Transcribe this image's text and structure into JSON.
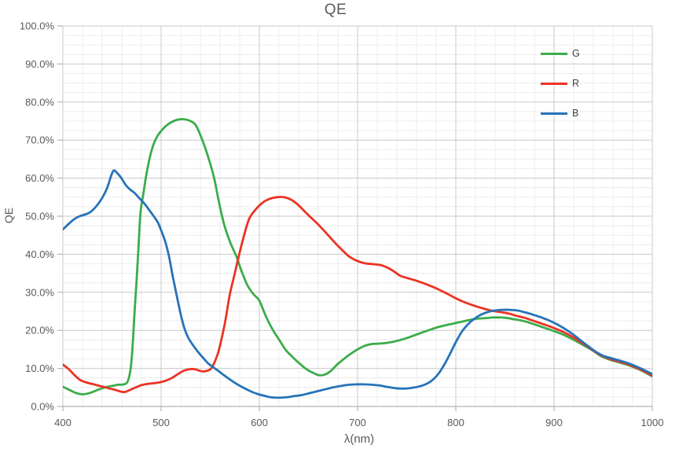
{
  "title": "QE",
  "chart_data": {
    "type": "line",
    "title": "QE",
    "xlabel": "λ(nm)",
    "ylabel": "QE",
    "x_range": [
      400,
      1000
    ],
    "y_range_percent": [
      0,
      100
    ],
    "x_major_step": 100,
    "x_minor_step": 20,
    "y_major_step_percent": 10,
    "y_minor_step_percent": 2.5,
    "grid": true,
    "legend_position": "inside-top-right",
    "x_tick_labels": [
      "400",
      "500",
      "600",
      "700",
      "800",
      "900",
      "1000"
    ],
    "y_tick_labels": [
      "0.0%",
      "10.0%",
      "20.0%",
      "30.0%",
      "40.0%",
      "50.0%",
      "60.0%",
      "70.0%",
      "80.0%",
      "90.0%",
      "100.0%"
    ],
    "grid_colors": {
      "minor": "#ececec",
      "major": "#c9c9c9",
      "axis": "#b5b5b5"
    },
    "text_color": "#595959",
    "series": [
      {
        "name": "G",
        "color": "#3aad4b",
        "points": [
          [
            400,
            5.2
          ],
          [
            407,
            4.3
          ],
          [
            414,
            3.5
          ],
          [
            421,
            3.2
          ],
          [
            428,
            3.6
          ],
          [
            436,
            4.4
          ],
          [
            444,
            5.1
          ],
          [
            450,
            5.4
          ],
          [
            456,
            5.7
          ],
          [
            462,
            5.8
          ],
          [
            466,
            6.6
          ],
          [
            469,
            10
          ],
          [
            471,
            16
          ],
          [
            473,
            25
          ],
          [
            475,
            33
          ],
          [
            477,
            42
          ],
          [
            479,
            51
          ],
          [
            482,
            56
          ],
          [
            485,
            61
          ],
          [
            490,
            67
          ],
          [
            495,
            70.5
          ],
          [
            502,
            73
          ],
          [
            509,
            74.5
          ],
          [
            516,
            75.3
          ],
          [
            522,
            75.5
          ],
          [
            528,
            75.2
          ],
          [
            535,
            74
          ],
          [
            542,
            70
          ],
          [
            548,
            65.5
          ],
          [
            554,
            60
          ],
          [
            559,
            53.5
          ],
          [
            564,
            48
          ],
          [
            569,
            44
          ],
          [
            573,
            41.5
          ],
          [
            577,
            39.2
          ],
          [
            582,
            35.5
          ],
          [
            588,
            31.8
          ],
          [
            594,
            29.5
          ],
          [
            600,
            27.8
          ],
          [
            607,
            23.5
          ],
          [
            614,
            20
          ],
          [
            620,
            17.6
          ],
          [
            627,
            14.8
          ],
          [
            633,
            13.2
          ],
          [
            640,
            11.5
          ],
          [
            648,
            9.8
          ],
          [
            655,
            8.8
          ],
          [
            661,
            8.2
          ],
          [
            667,
            8.4
          ],
          [
            673,
            9.4
          ],
          [
            680,
            11.2
          ],
          [
            688,
            12.9
          ],
          [
            695,
            14.2
          ],
          [
            700,
            15
          ],
          [
            707,
            15.9
          ],
          [
            714,
            16.4
          ],
          [
            721,
            16.5
          ],
          [
            729,
            16.7
          ],
          [
            738,
            17.1
          ],
          [
            748,
            17.8
          ],
          [
            760,
            18.9
          ],
          [
            772,
            20
          ],
          [
            784,
            21
          ],
          [
            796,
            21.7
          ],
          [
            808,
            22.4
          ],
          [
            820,
            23
          ],
          [
            830,
            23.2
          ],
          [
            840,
            23.4
          ],
          [
            850,
            23.3
          ],
          [
            860,
            22.9
          ],
          [
            870,
            22.4
          ],
          [
            880,
            21.6
          ],
          [
            890,
            20.7
          ],
          [
            900,
            19.8
          ],
          [
            910,
            18.8
          ],
          [
            920,
            17.5
          ],
          [
            930,
            16.1
          ],
          [
            940,
            14.6
          ],
          [
            948,
            13.2
          ],
          [
            958,
            12.2
          ],
          [
            966,
            11.6
          ],
          [
            974,
            11
          ],
          [
            982,
            10.2
          ],
          [
            990,
            9.3
          ],
          [
            1000,
            7.9
          ]
        ]
      },
      {
        "name": "R",
        "color": "#ec3323",
        "points": [
          [
            400,
            11
          ],
          [
            406,
            9.8
          ],
          [
            412,
            8.2
          ],
          [
            418,
            6.9
          ],
          [
            424,
            6.3
          ],
          [
            430,
            5.9
          ],
          [
            436,
            5.5
          ],
          [
            442,
            5.1
          ],
          [
            448,
            4.7
          ],
          [
            454,
            4.3
          ],
          [
            459,
            3.9
          ],
          [
            463,
            3.8
          ],
          [
            468,
            4.3
          ],
          [
            474,
            5
          ],
          [
            480,
            5.6
          ],
          [
            486,
            5.9
          ],
          [
            492,
            6.1
          ],
          [
            498,
            6.3
          ],
          [
            505,
            6.8
          ],
          [
            511,
            7.5
          ],
          [
            517,
            8.5
          ],
          [
            523,
            9.4
          ],
          [
            529,
            9.8
          ],
          [
            534,
            9.8
          ],
          [
            539,
            9.4
          ],
          [
            543,
            9.2
          ],
          [
            547,
            9.4
          ],
          [
            551,
            10
          ],
          [
            555,
            12
          ],
          [
            559,
            15
          ],
          [
            565,
            22
          ],
          [
            570,
            29.5
          ],
          [
            575,
            35
          ],
          [
            580,
            40.5
          ],
          [
            585,
            45.5
          ],
          [
            590,
            49.5
          ],
          [
            597,
            52
          ],
          [
            604,
            53.7
          ],
          [
            611,
            54.6
          ],
          [
            618,
            55
          ],
          [
            625,
            55
          ],
          [
            632,
            54.4
          ],
          [
            639,
            53.1
          ],
          [
            646,
            51.3
          ],
          [
            653,
            49.5
          ],
          [
            660,
            47.8
          ],
          [
            668,
            45.6
          ],
          [
            676,
            43.3
          ],
          [
            684,
            41.2
          ],
          [
            692,
            39.3
          ],
          [
            700,
            38.2
          ],
          [
            708,
            37.6
          ],
          [
            716,
            37.4
          ],
          [
            724,
            37.1
          ],
          [
            731,
            36.4
          ],
          [
            737,
            35.5
          ],
          [
            743,
            34.4
          ],
          [
            750,
            33.8
          ],
          [
            758,
            33.2
          ],
          [
            766,
            32.5
          ],
          [
            774,
            31.7
          ],
          [
            782,
            30.8
          ],
          [
            790,
            29.8
          ],
          [
            798,
            28.7
          ],
          [
            806,
            27.7
          ],
          [
            814,
            26.9
          ],
          [
            822,
            26.2
          ],
          [
            830,
            25.6
          ],
          [
            838,
            25.1
          ],
          [
            846,
            24.8
          ],
          [
            854,
            24.4
          ],
          [
            862,
            23.8
          ],
          [
            870,
            23.3
          ],
          [
            878,
            22.6
          ],
          [
            886,
            21.9
          ],
          [
            894,
            21.2
          ],
          [
            902,
            20.4
          ],
          [
            910,
            19.5
          ],
          [
            918,
            18.4
          ],
          [
            926,
            17.1
          ],
          [
            934,
            15.8
          ],
          [
            941,
            14.5
          ],
          [
            948,
            13.4
          ],
          [
            958,
            12.4
          ],
          [
            966,
            11.8
          ],
          [
            974,
            11.2
          ],
          [
            982,
            10.4
          ],
          [
            990,
            9.5
          ],
          [
            1000,
            8.1
          ]
        ]
      },
      {
        "name": "B",
        "color": "#2673b9",
        "points": [
          [
            400,
            46.5
          ],
          [
            406,
            48
          ],
          [
            412,
            49.3
          ],
          [
            417,
            50
          ],
          [
            422,
            50.4
          ],
          [
            428,
            51.1
          ],
          [
            434,
            52.6
          ],
          [
            440,
            54.8
          ],
          [
            445,
            57.4
          ],
          [
            451,
            61.8
          ],
          [
            455,
            61.4
          ],
          [
            459,
            60.2
          ],
          [
            464,
            58.2
          ],
          [
            468,
            57.1
          ],
          [
            473,
            56.1
          ],
          [
            478,
            54.7
          ],
          [
            483,
            53.3
          ],
          [
            488,
            51.6
          ],
          [
            493,
            49.8
          ],
          [
            497,
            48.2
          ],
          [
            500,
            46.3
          ],
          [
            504,
            43.5
          ],
          [
            508,
            39.5
          ],
          [
            512,
            34
          ],
          [
            516,
            29
          ],
          [
            520,
            24.2
          ],
          [
            524,
            20.3
          ],
          [
            528,
            17.9
          ],
          [
            533,
            15.9
          ],
          [
            538,
            14.2
          ],
          [
            543,
            12.7
          ],
          [
            548,
            11.3
          ],
          [
            553,
            10.3
          ],
          [
            558,
            9.4
          ],
          [
            564,
            8.2
          ],
          [
            570,
            7.1
          ],
          [
            577,
            5.9
          ],
          [
            584,
            4.9
          ],
          [
            591,
            4
          ],
          [
            598,
            3.3
          ],
          [
            605,
            2.8
          ],
          [
            612,
            2.4
          ],
          [
            619,
            2.3
          ],
          [
            627,
            2.4
          ],
          [
            635,
            2.7
          ],
          [
            643,
            3
          ],
          [
            651,
            3.5
          ],
          [
            659,
            4
          ],
          [
            667,
            4.5
          ],
          [
            675,
            5
          ],
          [
            683,
            5.4
          ],
          [
            691,
            5.7
          ],
          [
            699,
            5.8
          ],
          [
            707,
            5.8
          ],
          [
            715,
            5.7
          ],
          [
            723,
            5.5
          ],
          [
            731,
            5.1
          ],
          [
            739,
            4.8
          ],
          [
            747,
            4.7
          ],
          [
            755,
            4.9
          ],
          [
            762,
            5.2
          ],
          [
            768,
            5.7
          ],
          [
            774,
            6.5
          ],
          [
            780,
            7.9
          ],
          [
            785,
            9.6
          ],
          [
            790,
            11.8
          ],
          [
            795,
            14.3
          ],
          [
            800,
            16.9
          ],
          [
            806,
            19.6
          ],
          [
            812,
            21.5
          ],
          [
            818,
            22.9
          ],
          [
            824,
            23.9
          ],
          [
            831,
            24.7
          ],
          [
            839,
            25.2
          ],
          [
            847,
            25.4
          ],
          [
            855,
            25.4
          ],
          [
            863,
            25.2
          ],
          [
            871,
            24.7
          ],
          [
            879,
            24.1
          ],
          [
            887,
            23.4
          ],
          [
            895,
            22.6
          ],
          [
            903,
            21.6
          ],
          [
            911,
            20.4
          ],
          [
            919,
            19
          ],
          [
            927,
            17.4
          ],
          [
            935,
            15.8
          ],
          [
            943,
            14.3
          ],
          [
            950,
            13.3
          ],
          [
            958,
            12.7
          ],
          [
            966,
            12.1
          ],
          [
            974,
            11.5
          ],
          [
            982,
            10.7
          ],
          [
            990,
            9.8
          ],
          [
            1000,
            8.5
          ]
        ]
      }
    ]
  },
  "legend": {
    "items": [
      {
        "label": "G"
      },
      {
        "label": "R"
      },
      {
        "label": "B"
      }
    ]
  }
}
